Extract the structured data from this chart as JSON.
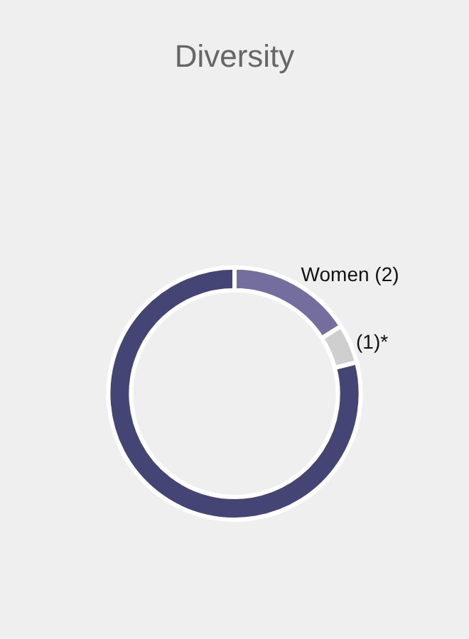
{
  "chart_data": {
    "type": "donut",
    "title": "Diversity",
    "categories": [
      "Women (2)",
      "(1)*",
      null
    ],
    "values": [
      16,
      5,
      79
    ],
    "colors": [
      "#746e9e",
      "#cfcfcf",
      "#454575"
    ],
    "legend": false
  }
}
